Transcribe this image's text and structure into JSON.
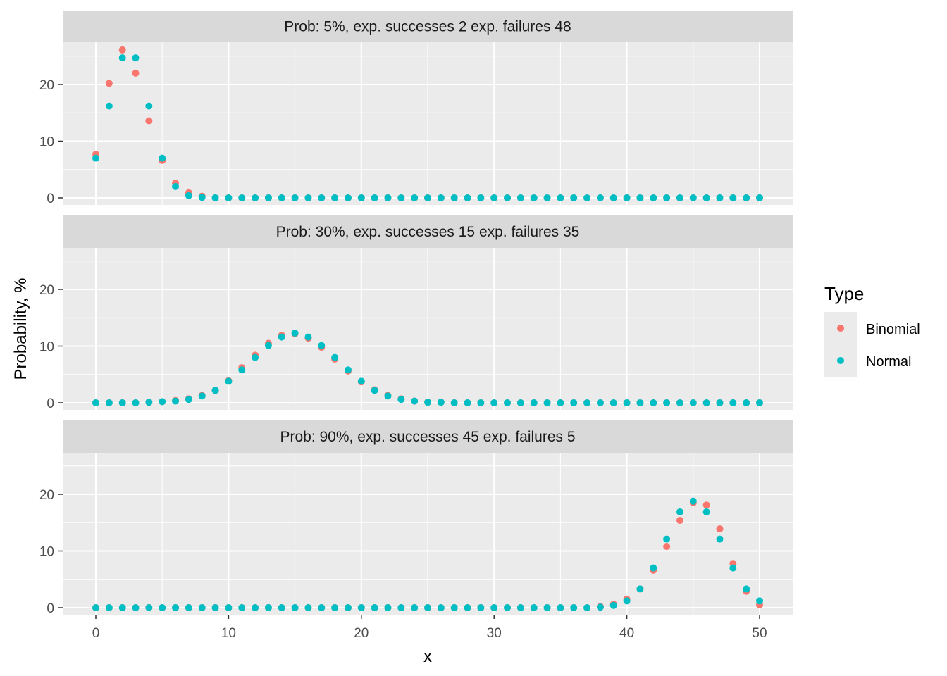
{
  "chart_data": {
    "type": "scatter",
    "xlabel": "x",
    "ylabel": "Probability, %",
    "xlim": [
      0,
      50
    ],
    "ylim": [
      0,
      25
    ],
    "x_ticks": [
      0,
      10,
      20,
      30,
      40,
      50
    ],
    "y_ticks": [
      0,
      10,
      20
    ],
    "grid": true,
    "legend": {
      "title": "Type",
      "position": "right",
      "entries": [
        {
          "name": "Binomial",
          "color": "#F8766D"
        },
        {
          "name": "Normal",
          "color": "#00BFC4"
        }
      ]
    },
    "x": [
      0,
      1,
      2,
      3,
      4,
      5,
      6,
      7,
      8,
      9,
      10,
      11,
      12,
      13,
      14,
      15,
      16,
      17,
      18,
      19,
      20,
      21,
      22,
      23,
      24,
      25,
      26,
      27,
      28,
      29,
      30,
      31,
      32,
      33,
      34,
      35,
      36,
      37,
      38,
      39,
      40,
      41,
      42,
      43,
      44,
      45,
      46,
      47,
      48,
      49,
      50
    ],
    "panels": [
      {
        "strip": "Prob: 5%, exp. successes 2 exp. failures 48",
        "series": [
          {
            "name": "Binomial",
            "color": "#F8766D",
            "values": [
              7.7,
              20.2,
              26.1,
              22.0,
              13.6,
              6.6,
              2.6,
              0.9,
              0.3,
              0,
              0,
              0,
              0,
              0,
              0,
              0,
              0,
              0,
              0,
              0,
              0,
              0,
              0,
              0,
              0,
              0,
              0,
              0,
              0,
              0,
              0,
              0,
              0,
              0,
              0,
              0,
              0,
              0,
              0,
              0,
              0,
              0,
              0,
              0,
              0,
              0,
              0,
              0,
              0,
              0,
              0
            ]
          },
          {
            "name": "Normal",
            "color": "#00BFC4",
            "values": [
              7.0,
              16.2,
              24.7,
              24.7,
              16.2,
              7.0,
              2.0,
              0.4,
              0.1,
              0,
              0,
              0,
              0,
              0,
              0,
              0,
              0,
              0,
              0,
              0,
              0,
              0,
              0,
              0,
              0,
              0,
              0,
              0,
              0,
              0,
              0,
              0,
              0,
              0,
              0,
              0,
              0,
              0,
              0,
              0,
              0,
              0,
              0,
              0,
              0,
              0,
              0,
              0,
              0,
              0,
              0
            ]
          }
        ]
      },
      {
        "strip": "Prob: 30%, exp. successes 15 exp. failures 35",
        "series": [
          {
            "name": "Binomial",
            "color": "#F8766D",
            "values": [
              0,
              0,
              0,
              0,
              0.1,
              0.2,
              0.4,
              0.7,
              1.3,
              2.2,
              3.9,
              6.2,
              8.4,
              10.5,
              11.9,
              12.2,
              11.4,
              9.8,
              7.7,
              5.6,
              3.7,
              2.3,
              1.3,
              0.7,
              0.3,
              0.1,
              0.1,
              0,
              0,
              0,
              0,
              0,
              0,
              0,
              0,
              0,
              0,
              0,
              0,
              0,
              0,
              0,
              0,
              0,
              0,
              0,
              0,
              0,
              0,
              0,
              0
            ]
          },
          {
            "name": "Normal",
            "color": "#00BFC4",
            "values": [
              0,
              0,
              0,
              0,
              0.1,
              0.2,
              0.3,
              0.6,
              1.2,
              2.2,
              3.8,
              5.8,
              8.0,
              10.1,
              11.6,
              12.3,
              11.6,
              10.1,
              8.0,
              5.8,
              3.8,
              2.2,
              1.2,
              0.6,
              0.3,
              0.1,
              0.1,
              0,
              0,
              0,
              0,
              0,
              0,
              0,
              0,
              0,
              0,
              0,
              0,
              0,
              0,
              0,
              0,
              0,
              0,
              0,
              0,
              0,
              0,
              0,
              0
            ]
          }
        ]
      },
      {
        "strip": "Prob: 90%, exp. successes 45 exp. failures 5",
        "series": [
          {
            "name": "Binomial",
            "color": "#F8766D",
            "values": [
              0,
              0,
              0,
              0,
              0,
              0,
              0,
              0,
              0,
              0,
              0,
              0,
              0,
              0,
              0,
              0,
              0,
              0,
              0,
              0,
              0,
              0,
              0,
              0,
              0,
              0,
              0,
              0,
              0,
              0,
              0,
              0,
              0,
              0,
              0,
              0,
              0,
              0,
              0.2,
              0.6,
              1.5,
              3.3,
              6.6,
              10.8,
              15.4,
              18.5,
              18.1,
              13.9,
              7.8,
              2.9,
              0.5
            ]
          },
          {
            "name": "Normal",
            "color": "#00BFC4",
            "values": [
              0,
              0,
              0,
              0,
              0,
              0,
              0,
              0,
              0,
              0,
              0,
              0,
              0,
              0,
              0,
              0,
              0,
              0,
              0,
              0,
              0,
              0,
              0,
              0,
              0,
              0,
              0,
              0,
              0,
              0,
              0,
              0,
              0,
              0,
              0,
              0,
              0,
              0,
              0.1,
              0.4,
              1.2,
              3.3,
              7.0,
              12.1,
              16.9,
              18.8,
              16.9,
              12.1,
              7.0,
              3.3,
              1.2
            ]
          }
        ]
      }
    ]
  }
}
